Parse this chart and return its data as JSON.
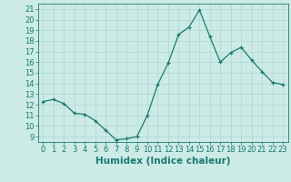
{
  "x": [
    0,
    1,
    2,
    3,
    4,
    5,
    6,
    7,
    8,
    9,
    10,
    11,
    12,
    13,
    14,
    15,
    16,
    17,
    18,
    19,
    20,
    21,
    22,
    23
  ],
  "y": [
    12.3,
    12.5,
    12.1,
    11.2,
    11.1,
    10.5,
    9.6,
    8.7,
    8.8,
    9.0,
    11.0,
    13.9,
    15.9,
    18.6,
    19.3,
    20.9,
    18.4,
    16.0,
    16.9,
    17.4,
    16.2,
    15.1,
    14.1,
    13.9
  ],
  "line_color": "#1a7a6e",
  "marker": "+",
  "marker_size": 3,
  "linewidth": 0.9,
  "xlabel": "Humidex (Indice chaleur)",
  "xlim": [
    -0.5,
    23.5
  ],
  "ylim": [
    8.5,
    21.5
  ],
  "yticks": [
    9,
    10,
    11,
    12,
    13,
    14,
    15,
    16,
    17,
    18,
    19,
    20,
    21
  ],
  "xticks": [
    0,
    1,
    2,
    3,
    4,
    5,
    6,
    7,
    8,
    9,
    10,
    11,
    12,
    13,
    14,
    15,
    16,
    17,
    18,
    19,
    20,
    21,
    22,
    23
  ],
  "bg_color": "#cceae6",
  "grid_color": "#b0d8d3",
  "tick_color": "#1a7a6e",
  "label_color": "#1a7a6e",
  "xlabel_fontsize": 7.5,
  "tick_fontsize": 6
}
